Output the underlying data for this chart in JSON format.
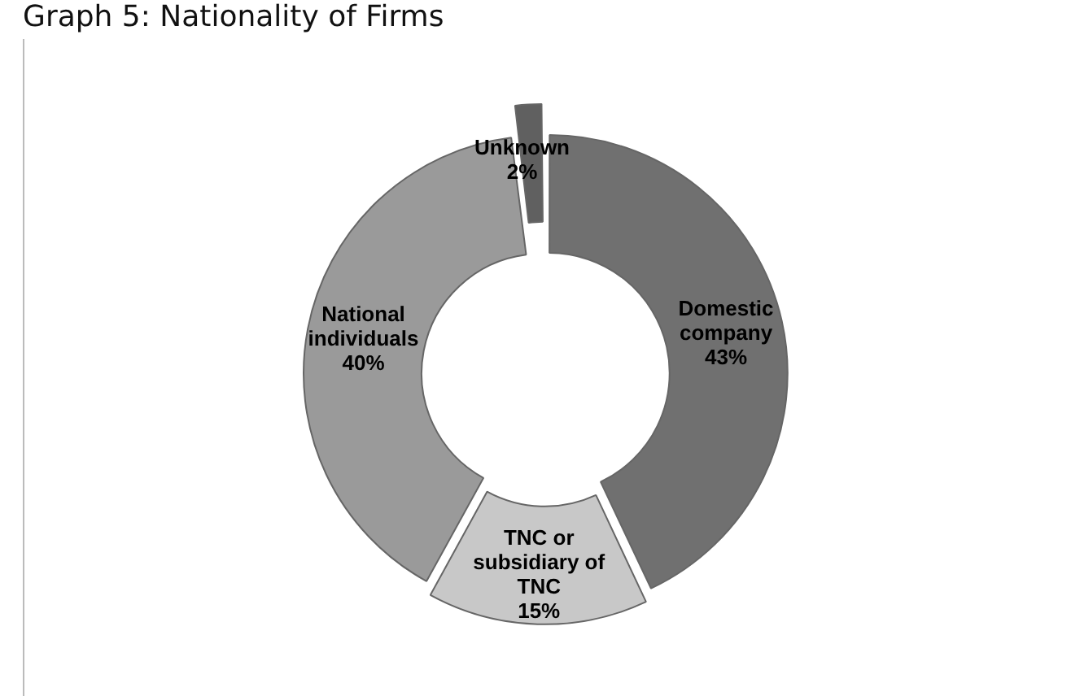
{
  "chart_data": {
    "type": "donut",
    "title": "Graph 5: Nationality of Firms",
    "categories": [
      "Domestic company",
      "TNC or subsidiary of TNC",
      "National individuals",
      "Unknown"
    ],
    "values": [
      43,
      15,
      40,
      2
    ],
    "value_labels": [
      "43%",
      "15%",
      "40%",
      "2%"
    ],
    "colors": [
      "#707070",
      "#c8c8c8",
      "#9a9a9a",
      "#606060"
    ],
    "legend": false
  }
}
